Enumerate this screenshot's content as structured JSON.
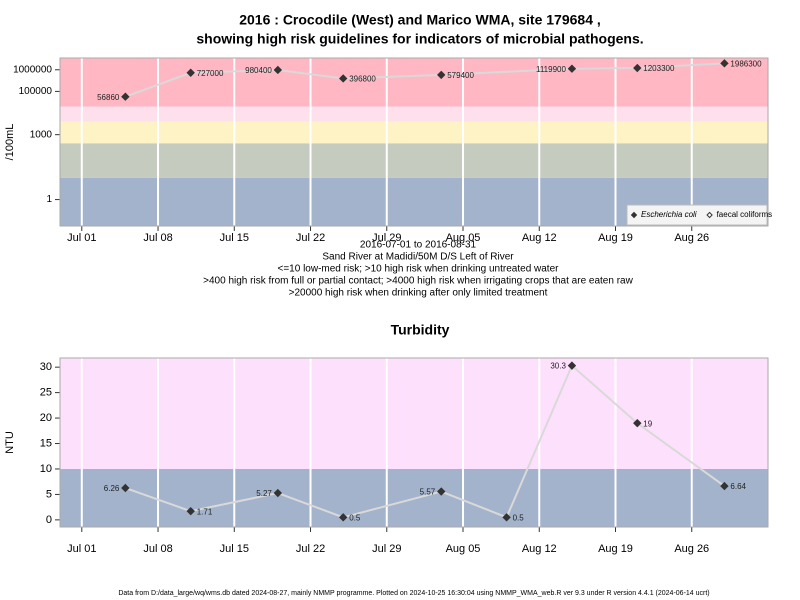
{
  "chart_data": [
    {
      "type": "line",
      "title": [
        "2016 : Crocodile (West) and Marico WMA, site 179684 ,",
        "showing high risk guidelines for indicators of microbial pathogens."
      ],
      "y_label": "/100mL",
      "log_scale": true,
      "x": [
        "2016-07-05",
        "2016-07-11",
        "2016-07-19",
        "2016-07-25",
        "2016-08-03",
        "2016-08-15",
        "2016-08-21",
        "2016-08-29"
      ],
      "series": [
        {
          "name": "Escherichia coli",
          "marker": "filled",
          "values": [
            56860,
            727000,
            980400,
            396800,
            579400,
            1119900,
            1203300,
            1986300
          ]
        },
        {
          "name": "faecal coliforms",
          "marker": "open",
          "values": [
            null,
            null,
            null,
            null,
            null,
            null,
            null,
            null
          ]
        }
      ],
      "line_color": "#d9d9d9",
      "marker_color": "#333333",
      "xlim": [
        "2016-06-29",
        "2016-09-02"
      ],
      "xticks": [
        {
          "value": "2016-07-01",
          "label": "Jul 01"
        },
        {
          "value": "2016-07-08",
          "label": "Jul 08"
        },
        {
          "value": "2016-07-15",
          "label": "Jul 15"
        },
        {
          "value": "2016-07-22",
          "label": "Jul 22"
        },
        {
          "value": "2016-07-29",
          "label": "Jul 29"
        },
        {
          "value": "2016-08-05",
          "label": "Aug 05"
        },
        {
          "value": "2016-08-12",
          "label": "Aug 12"
        },
        {
          "value": "2016-08-19",
          "label": "Aug 19"
        },
        {
          "value": "2016-08-26",
          "label": "Aug 26"
        }
      ],
      "ylim": [
        0.06,
        3500000
      ],
      "yticks": [
        1,
        1000,
        100000,
        1000000
      ],
      "band_edges": [
        10,
        400,
        4000,
        20000
      ],
      "band_colors": [
        "#a3b3cb",
        "#c5cbbf",
        "#fdf3c5",
        "#fde0ec",
        "#ffb7c4"
      ],
      "grid": "x",
      "notes": [
        "2016-07-01 to 2016-08-31",
        "Sand River at Madidi/50M D/S Left of River",
        "<=10 low-med risk; >10 high risk when drinking untreated water",
        ">400 high risk from full or partial contact; >4000 high risk when irrigating crops that are eaten raw",
        ">20000 high risk when drinking after only limited treatment"
      ],
      "legend": "bottom-right"
    },
    {
      "type": "line",
      "title": [
        "Turbidity"
      ],
      "y_label": "NTU",
      "log_scale": false,
      "x": [
        "2016-07-05",
        "2016-07-11",
        "2016-07-19",
        "2016-07-25",
        "2016-08-03",
        "2016-08-09",
        "2016-08-15",
        "2016-08-21",
        "2016-08-29"
      ],
      "values": [
        6.26,
        1.71,
        5.27,
        0.5,
        5.57,
        0.5,
        30.3,
        19,
        6.64
      ],
      "line_color": "#d9d9d9",
      "marker_color": "#333333",
      "xlim": [
        "2016-06-29",
        "2016-09-02"
      ],
      "xticks": [
        {
          "value": "2016-07-01",
          "label": "Jul 01"
        },
        {
          "value": "2016-07-08",
          "label": "Jul 08"
        },
        {
          "value": "2016-07-15",
          "label": "Jul 15"
        },
        {
          "value": "2016-07-22",
          "label": "Jul 22"
        },
        {
          "value": "2016-07-29",
          "label": "Jul 29"
        },
        {
          "value": "2016-08-05",
          "label": "Aug 05"
        },
        {
          "value": "2016-08-12",
          "label": "Aug 12"
        },
        {
          "value": "2016-08-19",
          "label": "Aug 19"
        },
        {
          "value": "2016-08-26",
          "label": "Aug 26"
        }
      ],
      "ylim": [
        -1.4,
        31.8
      ],
      "yticks": [
        0,
        5,
        10,
        15,
        20,
        25,
        30
      ],
      "band_edges": [
        10
      ],
      "band_colors": [
        "#a3b3cb",
        "#fde0fb"
      ],
      "grid": "x"
    }
  ],
  "footer": "Data from D:/data_large/wq/wms.db dated 2024-08-27, mainly NMMP programme. Plotted on 2024-10-25 16:30:04 using NMMP_WMA_web.R ver 9.3 under R version 4.4.1 (2024-06-14 ucrt)"
}
